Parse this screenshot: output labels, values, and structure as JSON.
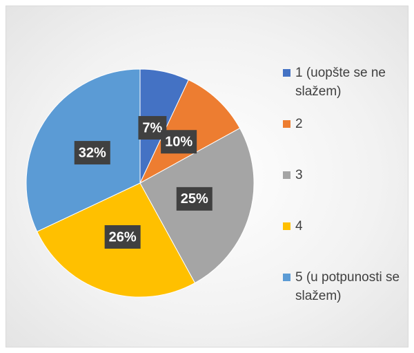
{
  "chart_data": {
    "type": "pie",
    "categories": [
      "1 (uopšte se ne slažem)",
      "2",
      "3",
      "4",
      "5 (u potpunosti se slažem)"
    ],
    "values": [
      7,
      10,
      25,
      26,
      32
    ],
    "value_labels": [
      "7%",
      "10%",
      "25%",
      "26%",
      "32%"
    ],
    "colors": [
      "#4472c4",
      "#ed7d31",
      "#a5a5a5",
      "#ffc000",
      "#5b9bd5"
    ],
    "legend": "right"
  }
}
